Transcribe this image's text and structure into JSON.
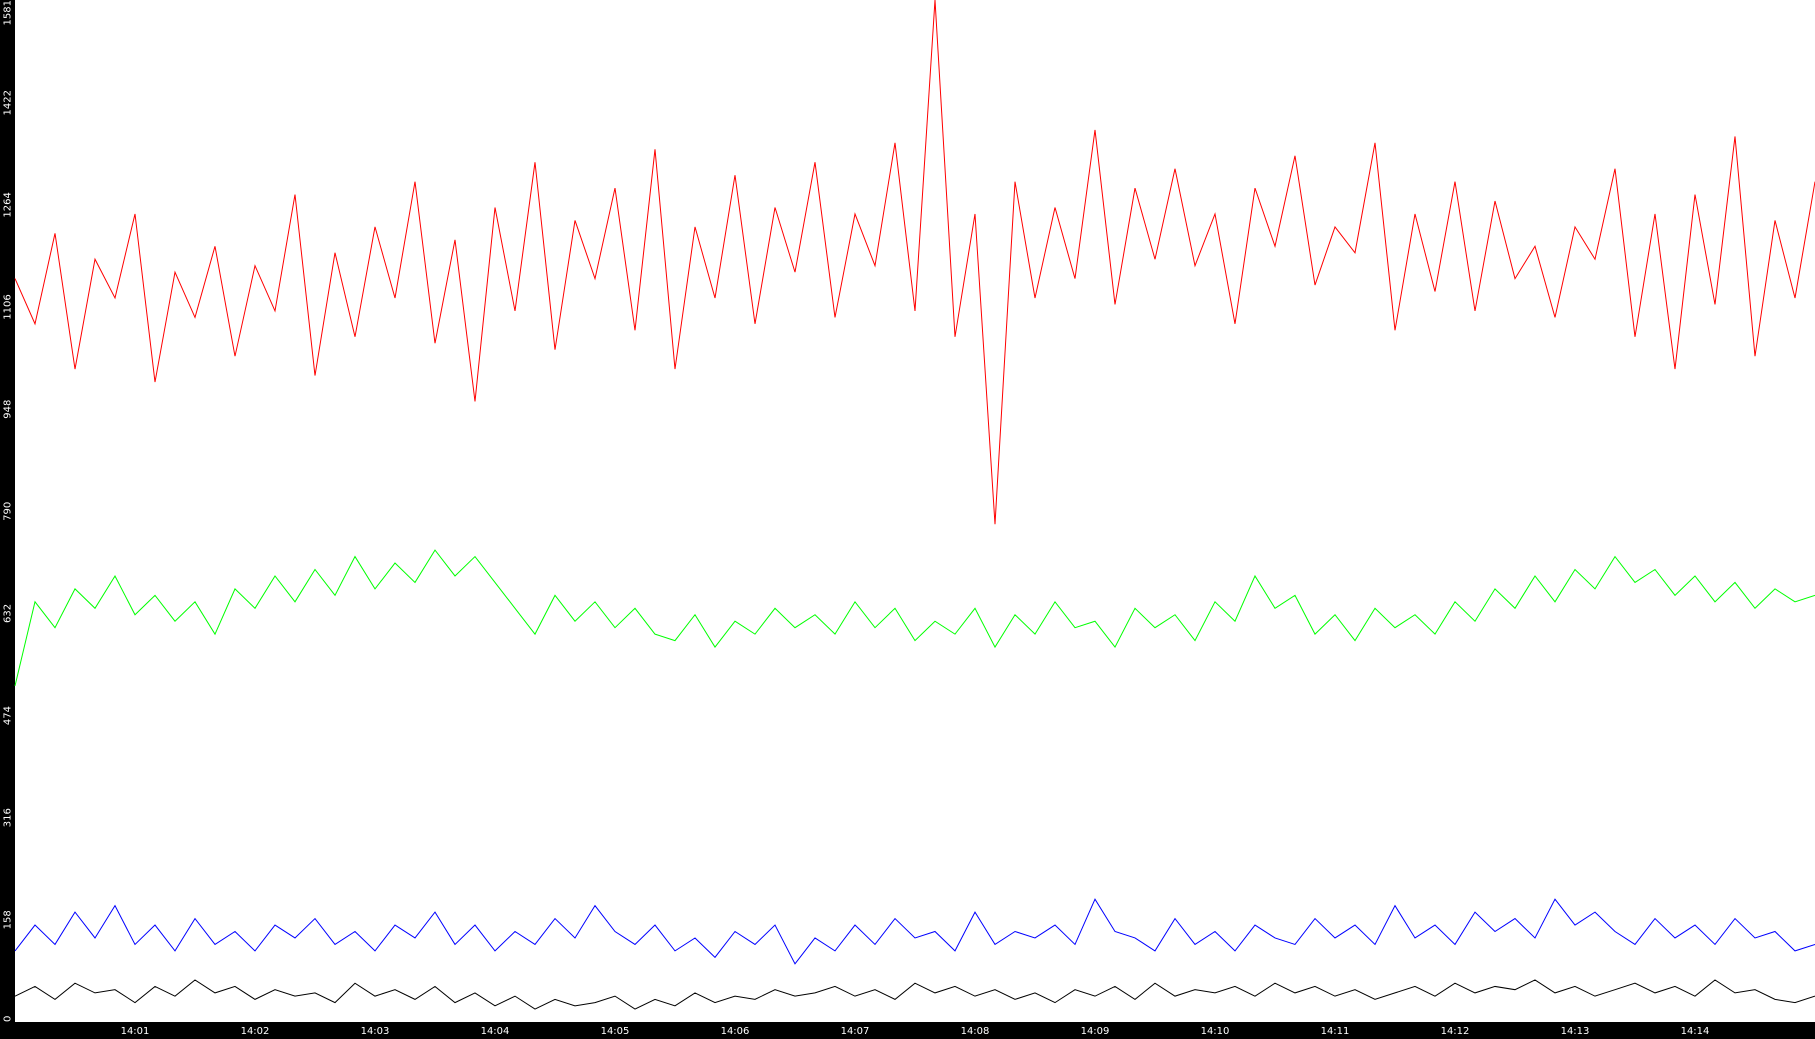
{
  "chart_data": {
    "type": "line",
    "x": [
      0,
      10,
      20,
      30,
      40,
      50,
      60,
      70,
      80,
      90,
      100,
      110,
      120,
      130,
      140,
      150,
      160,
      170,
      180,
      190,
      200,
      210,
      220,
      230,
      240,
      250,
      260,
      270,
      280,
      290,
      300,
      310,
      320,
      330,
      340,
      350,
      360,
      370,
      380,
      390,
      400,
      410,
      420,
      430,
      440,
      450,
      460,
      470,
      480,
      490,
      500,
      510,
      520,
      530,
      540,
      550,
      560,
      570,
      580,
      590,
      600,
      610,
      620,
      630,
      640,
      650,
      660,
      670,
      680,
      690,
      700,
      710,
      720,
      730,
      740,
      750,
      760,
      770,
      780,
      790,
      800,
      810,
      820,
      830,
      840,
      850,
      860,
      870,
      880,
      890,
      900
    ],
    "series": [
      {
        "color": "#ff0000",
        "values": [
          1150,
          1080,
          1220,
          1010,
          1180,
          1120,
          1250,
          990,
          1160,
          1090,
          1200,
          1030,
          1170,
          1100,
          1280,
          1000,
          1190,
          1060,
          1230,
          1120,
          1300,
          1050,
          1210,
          960,
          1260,
          1100,
          1330,
          1040,
          1240,
          1150,
          1290,
          1070,
          1350,
          1010,
          1230,
          1120,
          1310,
          1080,
          1260,
          1160,
          1330,
          1090,
          1250,
          1170,
          1360,
          1100,
          1581,
          1060,
          1250,
          770,
          1300,
          1120,
          1260,
          1150,
          1380,
          1110,
          1290,
          1180,
          1320,
          1170,
          1250,
          1080,
          1290,
          1200,
          1340,
          1140,
          1230,
          1190,
          1360,
          1070,
          1250,
          1130,
          1300,
          1100,
          1270,
          1150,
          1200,
          1090,
          1230,
          1180,
          1320,
          1060,
          1250,
          1010,
          1280,
          1110,
          1370,
          1030,
          1240,
          1120,
          1300
        ]
      },
      {
        "color": "#00ff00",
        "values": [
          520,
          650,
          610,
          670,
          640,
          690,
          630,
          660,
          620,
          650,
          600,
          670,
          640,
          690,
          650,
          700,
          660,
          720,
          670,
          710,
          680,
          730,
          690,
          720,
          680,
          640,
          600,
          660,
          620,
          650,
          610,
          640,
          600,
          590,
          630,
          580,
          620,
          600,
          640,
          610,
          630,
          600,
          650,
          610,
          640,
          590,
          620,
          600,
          640,
          580,
          630,
          600,
          650,
          610,
          620,
          580,
          640,
          610,
          630,
          590,
          650,
          620,
          690,
          640,
          660,
          600,
          630,
          590,
          640,
          610,
          630,
          600,
          650,
          620,
          670,
          640,
          690,
          650,
          700,
          670,
          720,
          680,
          700,
          660,
          690,
          650,
          680,
          640,
          670,
          650,
          660
        ]
      },
      {
        "color": "#0000ff",
        "values": [
          110,
          150,
          120,
          170,
          130,
          180,
          120,
          150,
          110,
          160,
          120,
          140,
          110,
          150,
          130,
          160,
          120,
          140,
          110,
          150,
          130,
          170,
          120,
          150,
          110,
          140,
          120,
          160,
          130,
          180,
          140,
          120,
          150,
          110,
          130,
          100,
          140,
          120,
          150,
          90,
          130,
          110,
          150,
          120,
          160,
          130,
          140,
          110,
          170,
          120,
          140,
          130,
          150,
          120,
          190,
          140,
          130,
          110,
          160,
          120,
          140,
          110,
          150,
          130,
          120,
          160,
          130,
          150,
          120,
          180,
          130,
          150,
          120,
          170,
          140,
          160,
          130,
          190,
          150,
          170,
          140,
          120,
          160,
          130,
          150,
          120,
          160,
          130,
          140,
          110,
          120
        ]
      },
      {
        "color": "#000000",
        "values": [
          40,
          55,
          35,
          60,
          45,
          50,
          30,
          55,
          40,
          65,
          45,
          55,
          35,
          50,
          40,
          45,
          30,
          60,
          40,
          50,
          35,
          55,
          30,
          45,
          25,
          40,
          20,
          35,
          25,
          30,
          40,
          20,
          35,
          25,
          45,
          30,
          40,
          35,
          50,
          40,
          45,
          55,
          40,
          50,
          35,
          60,
          45,
          55,
          40,
          50,
          35,
          45,
          30,
          50,
          40,
          55,
          35,
          60,
          40,
          50,
          45,
          55,
          40,
          60,
          45,
          55,
          40,
          50,
          35,
          45,
          55,
          40,
          60,
          45,
          55,
          50,
          65,
          45,
          55,
          40,
          50,
          60,
          45,
          55,
          40,
          65,
          45,
          50,
          35,
          30,
          40
        ]
      }
    ],
    "xlim": [
      0,
      900
    ],
    "xticks": [
      {
        "value": 60,
        "label": "14:01"
      },
      {
        "value": 120,
        "label": "14:02"
      },
      {
        "value": 180,
        "label": "14:03"
      },
      {
        "value": 240,
        "label": "14:04"
      },
      {
        "value": 300,
        "label": "14:05"
      },
      {
        "value": 360,
        "label": "14:06"
      },
      {
        "value": 420,
        "label": "14:07"
      },
      {
        "value": 480,
        "label": "14:08"
      },
      {
        "value": 540,
        "label": "14:09"
      },
      {
        "value": 600,
        "label": "14:10"
      },
      {
        "value": 660,
        "label": "14:11"
      },
      {
        "value": 720,
        "label": "14:12"
      },
      {
        "value": 780,
        "label": "14:13"
      },
      {
        "value": 840,
        "label": "14:14"
      }
    ],
    "ylim": [
      0,
      1581
    ],
    "yticks": [
      0,
      158,
      316,
      474,
      632,
      790,
      948,
      1106,
      1264,
      1422,
      1581
    ],
    "grid": false
  }
}
